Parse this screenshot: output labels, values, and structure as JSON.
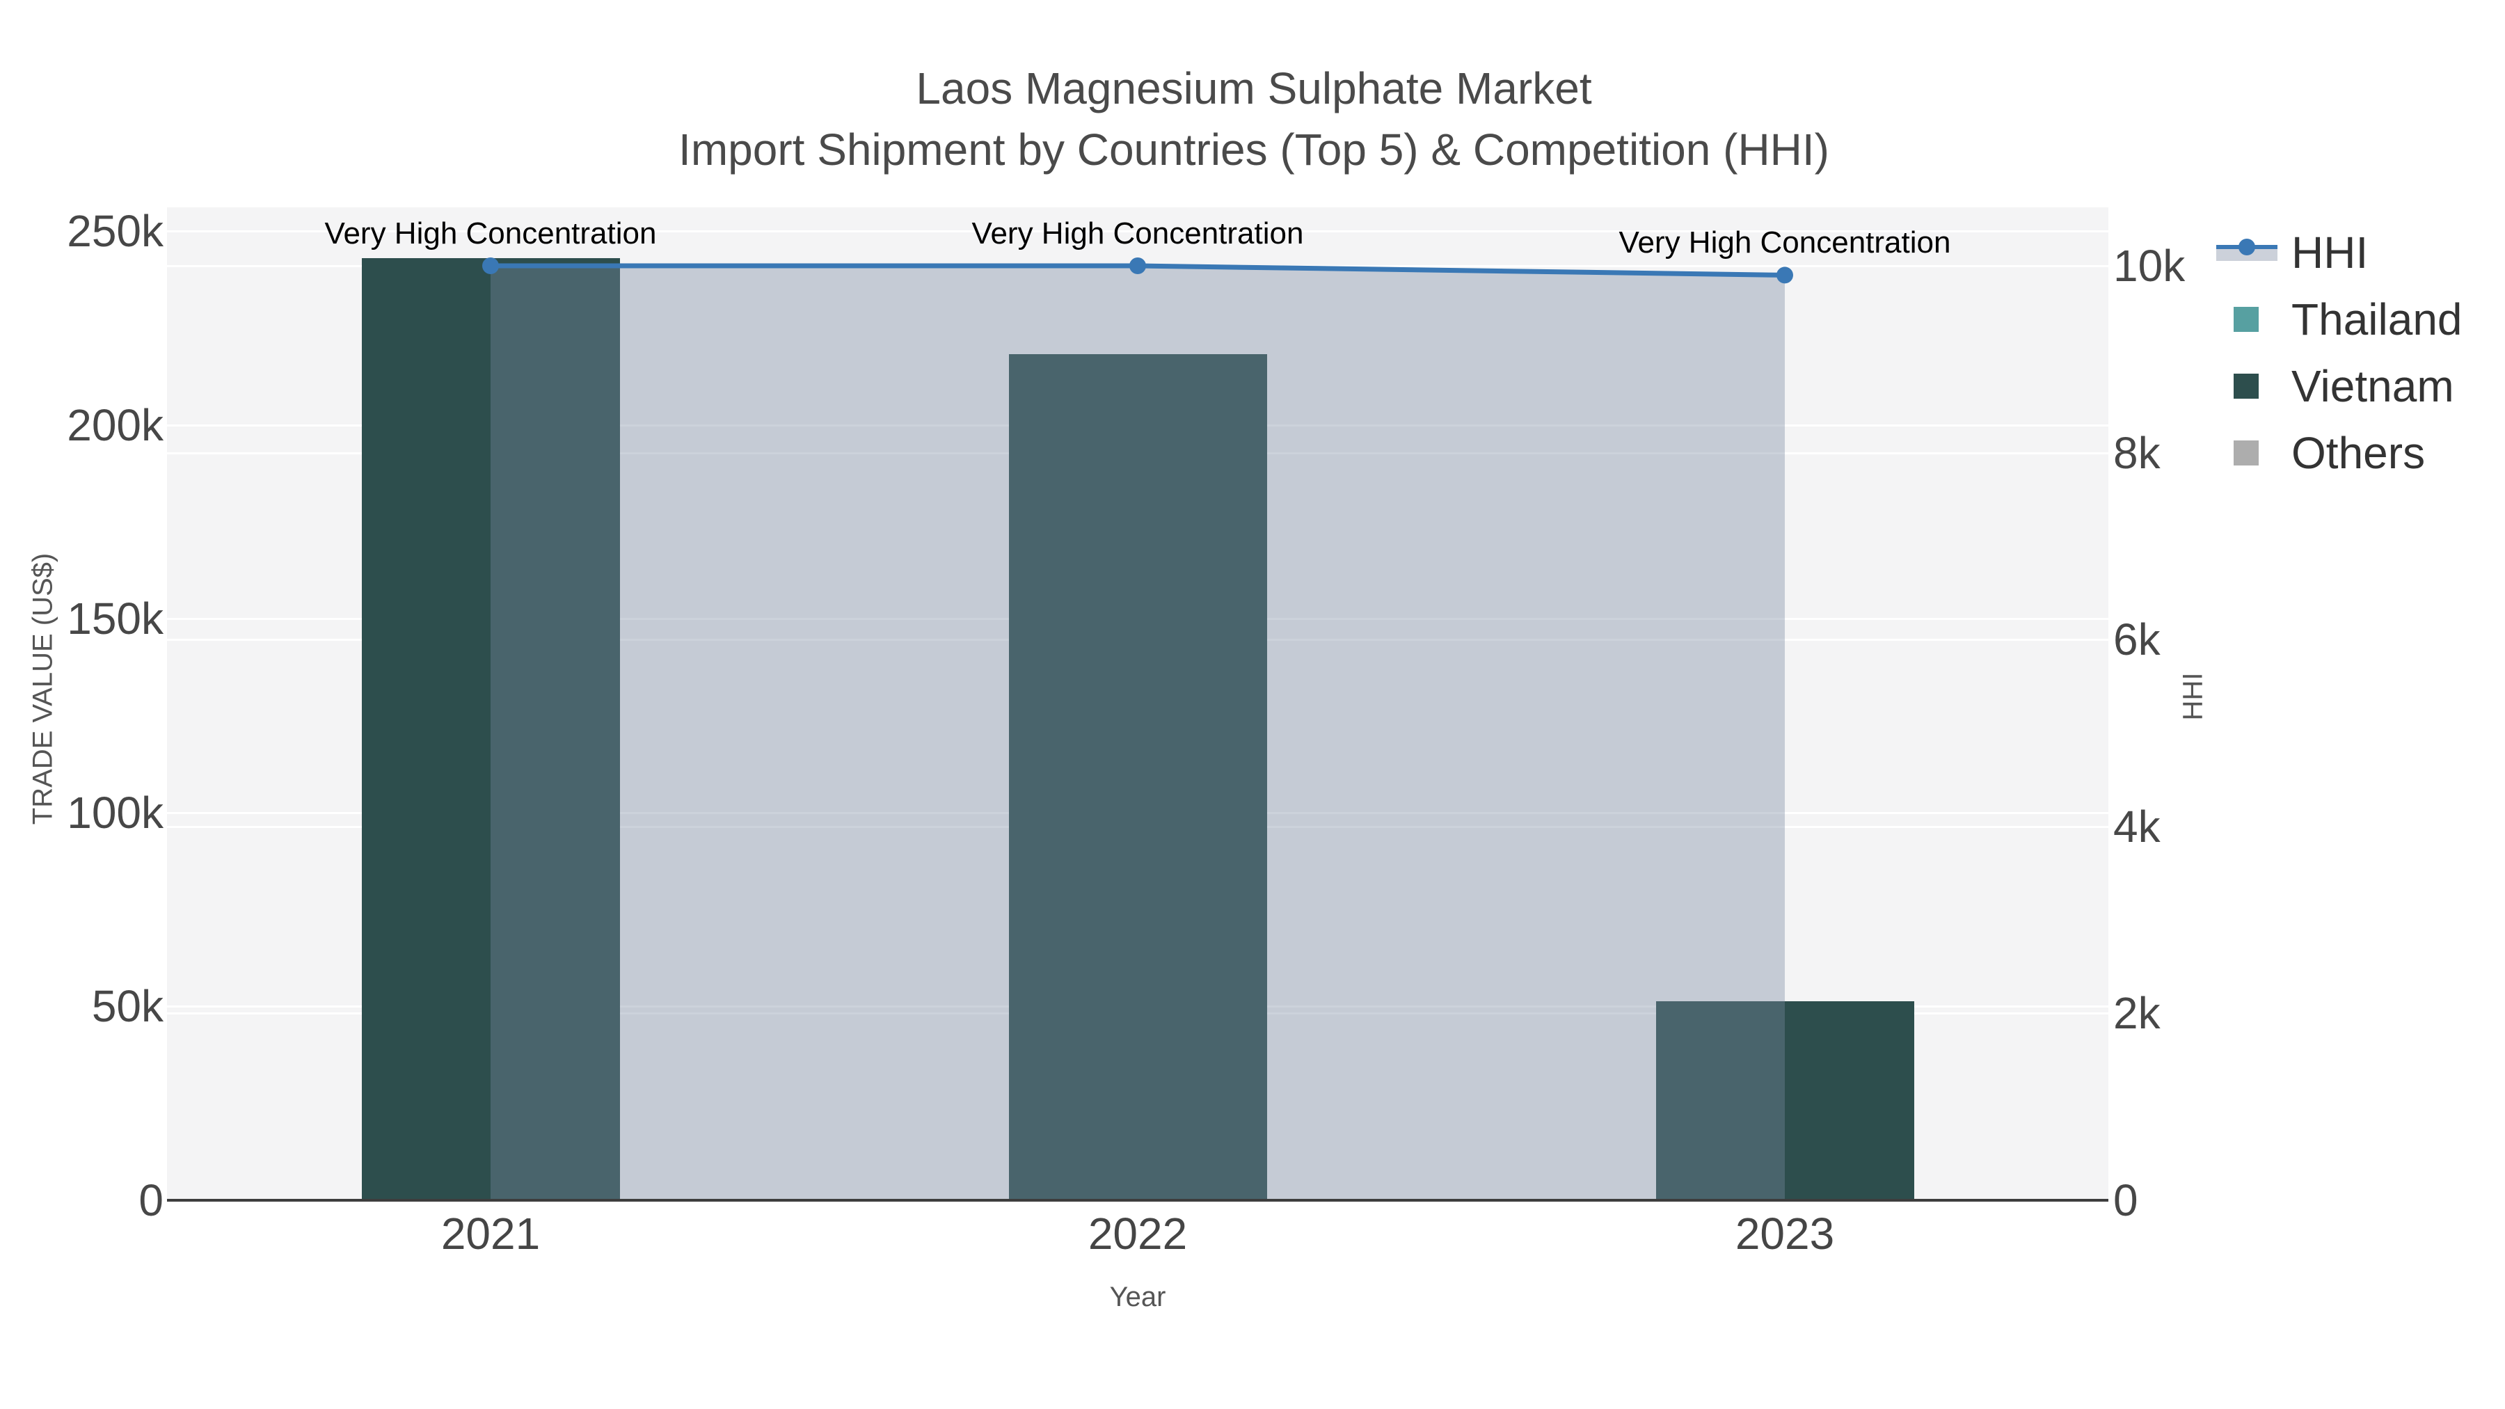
{
  "title": {
    "line1": "Laos Magnesium Sulphate Market",
    "line2": "Import Shipment by Countries (Top 5) & Competition (HHI)"
  },
  "axes": {
    "left": {
      "title": "TRADE VALUE (US$)",
      "max": 250000,
      "ticks": [
        {
          "label": "250k",
          "value": 250000
        },
        {
          "label": "200k",
          "value": 200000
        },
        {
          "label": "150k",
          "value": 150000
        },
        {
          "label": "100k",
          "value": 100000
        },
        {
          "label": "50k",
          "value": 50000
        },
        {
          "label": "0",
          "value": 0
        }
      ]
    },
    "right": {
      "title": "HHI",
      "max": 10000,
      "ticks": [
        {
          "label": "10k",
          "value": 10000
        },
        {
          "label": "8k",
          "value": 8000
        },
        {
          "label": "6k",
          "value": 6000
        },
        {
          "label": "4k",
          "value": 4000
        },
        {
          "label": "2k",
          "value": 2000
        },
        {
          "label": "0",
          "value": 0
        }
      ]
    },
    "x": {
      "title": "Year",
      "categories": [
        "2021",
        "2022",
        "2023"
      ]
    }
  },
  "legend": {
    "items": [
      {
        "label": "HHI",
        "swatch": "line-area",
        "color": "#3a78b5",
        "fill": "#ccd1da"
      },
      {
        "label": "Thailand",
        "swatch": "square",
        "color": "#57a0a1"
      },
      {
        "label": "Vietnam",
        "swatch": "square",
        "color": "#2d4e4d"
      },
      {
        "label": "Others",
        "swatch": "square",
        "color": "#adadad"
      }
    ]
  },
  "annotations": [
    {
      "text": "Very High Concentration",
      "category": "2021"
    },
    {
      "text": "Very High Concentration",
      "category": "2022"
    },
    {
      "text": "Very High Concentration",
      "category": "2023"
    }
  ],
  "colors": {
    "bar_vietnam": "#2d4e4d",
    "hhi_line": "#3a78b5",
    "hhi_area_fill": "rgba(120,136,160,0.38)",
    "plot_background": "#f4f4f5",
    "axis_line": "#3d3d3d"
  },
  "chart_data": {
    "type": "bar+line",
    "categories": [
      "2021",
      "2022",
      "2023"
    ],
    "series": [
      {
        "name": "Thailand",
        "type": "bar",
        "axis": "left",
        "color": "#57a0a1",
        "values": [
          0,
          0,
          0
        ]
      },
      {
        "name": "Vietnam",
        "type": "bar",
        "axis": "left",
        "color": "#2d4e4d",
        "values": [
          243000,
          218200,
          51300
        ]
      },
      {
        "name": "Others",
        "type": "bar",
        "axis": "left",
        "color": "#adadad",
        "values": [
          0,
          0,
          0
        ]
      },
      {
        "name": "HHI",
        "type": "line",
        "area_fill": true,
        "axis": "right",
        "color": "#3a78b5",
        "values": [
          10000,
          10000,
          9900
        ]
      }
    ],
    "title": "Laos Magnesium Sulphate Market",
    "subtitle": "Import Shipment by Countries (Top 5) & Competition (HHI)",
    "xlabel": "Year",
    "ylabel_left": "TRADE VALUE (US$)",
    "ylabel_right": "HHI",
    "ylim_left": [
      0,
      250000
    ],
    "ylim_right": [
      0,
      10000
    ],
    "annotations": [
      "Very High Concentration",
      "Very High Concentration",
      "Very High Concentration"
    ],
    "grid": true,
    "legend_position": "right"
  }
}
